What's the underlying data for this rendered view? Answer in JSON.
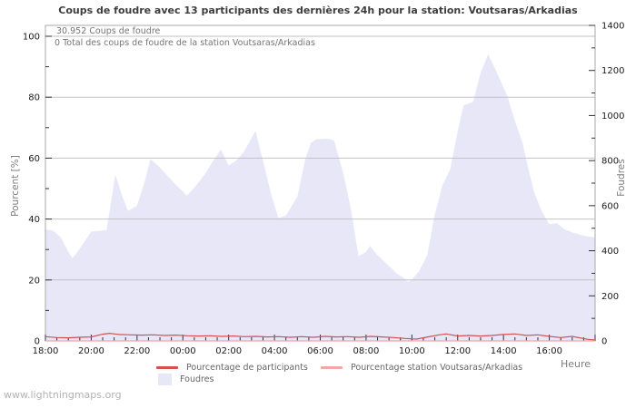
{
  "watermark": "www.lightningmaps.org",
  "chart_data": {
    "type": "area",
    "title": "Coups de foudre avec 13 participants des dernières 24h pour la station: Voutsaras/Arkadias",
    "annotations": [
      "30.952  Coups de foudre",
      "0 Total des coups de foudre de la station Voutsaras/Arkadias"
    ],
    "x_axis": {
      "label": "Heure",
      "tick_labels": [
        "18:00",
        "20:00",
        "22:00",
        "00:00",
        "02:00",
        "04:00",
        "06:00",
        "08:00",
        "10:00",
        "12:00",
        "14:00",
        "16:00"
      ],
      "range_hours": 24,
      "major_tick_hours": 2,
      "minor_tick_minutes": 30
    },
    "y_left": {
      "label": "Pourcent  [%]",
      "ticks": [
        0,
        20,
        40,
        60,
        80,
        100
      ],
      "minor_step": 10,
      "max": 100,
      "grid": true
    },
    "y_right": {
      "label": "Foudres",
      "ticks": [
        0,
        200,
        400,
        600,
        800,
        1000,
        1200,
        1400
      ],
      "minor_step": 100,
      "max": 1400,
      "grid": false
    },
    "colors": {
      "grid": "#c2c2c8",
      "frame": "#a8a8a8",
      "tick": "#333333",
      "tick_label": "#1a1a1a"
    },
    "series": [
      {
        "name": "Pourcentage de participants",
        "type": "line",
        "axis": "left",
        "color": "#d65050",
        "points": [
          [
            0,
            1.4
          ],
          [
            0.5,
            1.1
          ],
          [
            1,
            1.0
          ],
          [
            1.5,
            1.2
          ],
          [
            2,
            1.3
          ],
          [
            2.5,
            2.2
          ],
          [
            2.8,
            2.5
          ],
          [
            3.2,
            2.1
          ],
          [
            3.7,
            2.0
          ],
          [
            4.2,
            1.9
          ],
          [
            4.7,
            2.0
          ],
          [
            5.2,
            1.8
          ],
          [
            5.7,
            1.9
          ],
          [
            6.2,
            1.7
          ],
          [
            6.7,
            1.6
          ],
          [
            7.2,
            1.7
          ],
          [
            7.7,
            1.5
          ],
          [
            8.2,
            1.6
          ],
          [
            8.7,
            1.4
          ],
          [
            9.2,
            1.5
          ],
          [
            9.7,
            1.3
          ],
          [
            10.2,
            1.4
          ],
          [
            10.7,
            1.2
          ],
          [
            11.2,
            1.4
          ],
          [
            11.7,
            1.2
          ],
          [
            12.2,
            1.5
          ],
          [
            12.7,
            1.3
          ],
          [
            13.2,
            1.4
          ],
          [
            13.7,
            1.2
          ],
          [
            14.2,
            1.5
          ],
          [
            14.7,
            1.3
          ],
          [
            15.2,
            1.1
          ],
          [
            15.7,
            0.8
          ],
          [
            16.2,
            0.6
          ],
          [
            16.7,
            1.3
          ],
          [
            17.2,
            2.0
          ],
          [
            17.5,
            2.3
          ],
          [
            18,
            1.6
          ],
          [
            18.5,
            1.8
          ],
          [
            19,
            1.6
          ],
          [
            19.5,
            1.8
          ],
          [
            20,
            2.1
          ],
          [
            20.5,
            2.3
          ],
          [
            21,
            1.8
          ],
          [
            21.5,
            2.0
          ],
          [
            22,
            1.5
          ],
          [
            22.5,
            1.1
          ],
          [
            23,
            1.5
          ],
          [
            23.4,
            0.9
          ],
          [
            23.7,
            0.5
          ],
          [
            24,
            0.3
          ]
        ]
      },
      {
        "name": "Pourcentage station Voutsaras/Arkadias",
        "type": "line",
        "axis": "left",
        "color": "#f2a6a6",
        "points": [
          [
            0,
            0
          ],
          [
            6,
            0
          ],
          [
            12,
            0
          ],
          [
            18,
            0
          ],
          [
            24,
            0
          ]
        ]
      },
      {
        "name": "Foudres",
        "type": "area",
        "axis": "right",
        "color": "#e7e7f8",
        "points": [
          [
            0,
            495
          ],
          [
            0.33,
            490
          ],
          [
            0.67,
            460
          ],
          [
            1,
            395
          ],
          [
            1.17,
            368
          ],
          [
            1.33,
            385
          ],
          [
            1.67,
            435
          ],
          [
            2,
            485
          ],
          [
            2.33,
            488
          ],
          [
            2.67,
            492
          ],
          [
            3.05,
            738
          ],
          [
            3.33,
            650
          ],
          [
            3.6,
            576
          ],
          [
            4,
            600
          ],
          [
            4.33,
            705
          ],
          [
            4.58,
            807
          ],
          [
            5,
            770
          ],
          [
            5.33,
            732
          ],
          [
            5.67,
            695
          ],
          [
            6,
            663
          ],
          [
            6.17,
            645
          ],
          [
            6.5,
            680
          ],
          [
            7,
            745
          ],
          [
            7.33,
            800
          ],
          [
            7.67,
            850
          ],
          [
            8,
            778
          ],
          [
            8.33,
            800
          ],
          [
            8.67,
            840
          ],
          [
            9.17,
            932
          ],
          [
            9.5,
            800
          ],
          [
            9.83,
            660
          ],
          [
            10.17,
            545
          ],
          [
            10.5,
            556
          ],
          [
            11,
            640
          ],
          [
            11.33,
            800
          ],
          [
            11.58,
            878
          ],
          [
            11.83,
            895
          ],
          [
            12.33,
            897
          ],
          [
            12.6,
            890
          ],
          [
            13,
            745
          ],
          [
            13.33,
            590
          ],
          [
            13.67,
            375
          ],
          [
            14,
            395
          ],
          [
            14.17,
            422
          ],
          [
            14.5,
            380
          ],
          [
            15,
            333
          ],
          [
            15.33,
            300
          ],
          [
            15.67,
            277
          ],
          [
            15.83,
            263
          ],
          [
            16,
            272
          ],
          [
            16.33,
            312
          ],
          [
            16.67,
            380
          ],
          [
            17,
            560
          ],
          [
            17.33,
            690
          ],
          [
            17.67,
            760
          ],
          [
            18,
            930
          ],
          [
            18.25,
            1045
          ],
          [
            18.67,
            1060
          ],
          [
            19,
            1190
          ],
          [
            19.33,
            1272
          ],
          [
            19.67,
            1200
          ],
          [
            20.17,
            1085
          ],
          [
            20.5,
            975
          ],
          [
            20.83,
            880
          ],
          [
            21,
            800
          ],
          [
            21.33,
            662
          ],
          [
            21.67,
            575
          ],
          [
            22,
            518
          ],
          [
            22.33,
            522
          ],
          [
            22.67,
            495
          ],
          [
            23,
            482
          ],
          [
            23.33,
            472
          ],
          [
            23.67,
            463
          ],
          [
            24,
            460
          ]
        ]
      }
    ]
  }
}
